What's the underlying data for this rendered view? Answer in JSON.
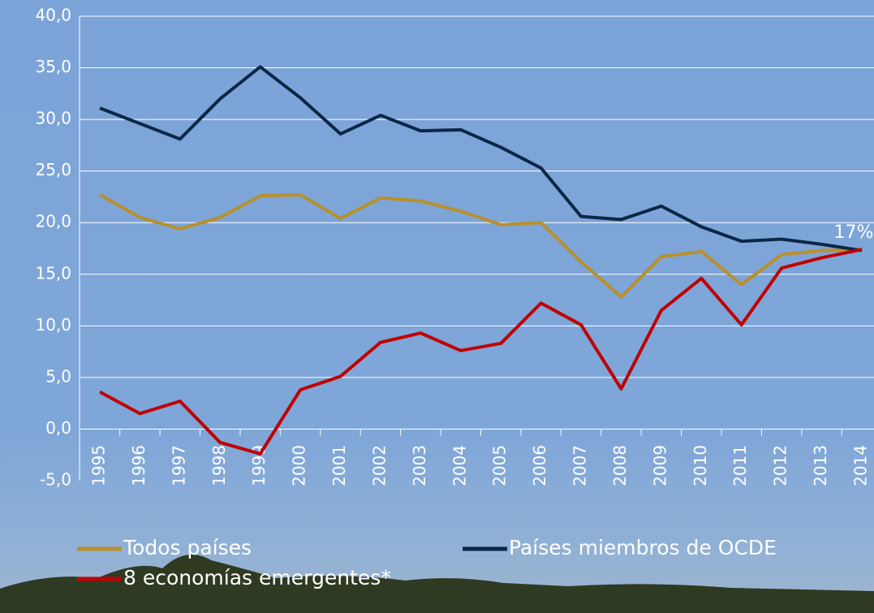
{
  "chart_data": {
    "type": "line",
    "categories": [
      "1995",
      "1996",
      "1997",
      "1998",
      "1999",
      "2000",
      "2001",
      "2002",
      "2003",
      "2004",
      "2005",
      "2006",
      "2007",
      "2008",
      "2009",
      "2010",
      "2011",
      "2012",
      "2013",
      "2014"
    ],
    "series": [
      {
        "name": "Todos países",
        "color": "#b8902a",
        "values": [
          22.7,
          20.5,
          19.4,
          20.5,
          22.6,
          22.7,
          20.4,
          22.4,
          22.1,
          21.1,
          19.8,
          20.0,
          16.2,
          12.8,
          16.7,
          17.2,
          14.0,
          16.9,
          17.3,
          17.4
        ]
      },
      {
        "name": "Países miembros de OCDE",
        "color": "#0b2747",
        "values": [
          31.1,
          29.6,
          28.1,
          32.0,
          35.1,
          32.1,
          28.6,
          30.4,
          28.9,
          29.0,
          27.3,
          25.3,
          20.6,
          20.3,
          21.6,
          19.6,
          18.2,
          18.4,
          17.9,
          17.3
        ]
      },
      {
        "name": "8 economías emergentes*",
        "color": "#c00000",
        "values": [
          3.6,
          1.5,
          2.7,
          -1.3,
          -2.4,
          3.8,
          5.1,
          8.4,
          9.3,
          7.6,
          8.3,
          12.2,
          10.1,
          3.9,
          11.5,
          14.6,
          10.1,
          15.6,
          16.6,
          17.4
        ]
      }
    ],
    "ylim": [
      -5,
      40
    ],
    "yticks": [
      {
        "value": -5,
        "label": "-5,0"
      },
      {
        "value": 0,
        "label": "0,0"
      },
      {
        "value": 5,
        "label": "5,0"
      },
      {
        "value": 10,
        "label": "10,0"
      },
      {
        "value": 15,
        "label": "15,0"
      },
      {
        "value": 20,
        "label": "20,0"
      },
      {
        "value": 25,
        "label": "25,0"
      },
      {
        "value": 30,
        "label": "30,0"
      },
      {
        "value": 35,
        "label": "35,0"
      },
      {
        "value": 40,
        "label": "40,0"
      }
    ],
    "grid": true,
    "annotation": "17%"
  }
}
